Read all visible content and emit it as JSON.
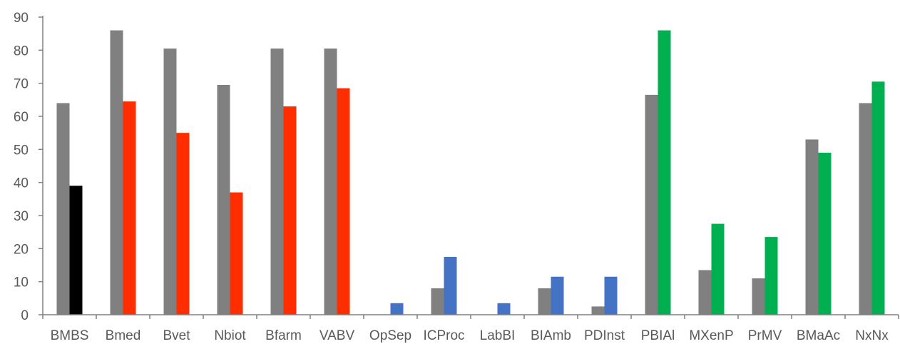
{
  "chart_data": {
    "type": "bar",
    "title": "",
    "xlabel": "",
    "ylabel": "",
    "ylim": [
      0,
      90
    ],
    "yticks": [
      0,
      10,
      20,
      30,
      40,
      50,
      60,
      70,
      80,
      90
    ],
    "grid": false,
    "legend": "none",
    "categories": [
      "BMBS",
      "Bmed",
      "Bvet",
      "Nbiot",
      "Bfarm",
      "VABV",
      "OpSep",
      "ICProc",
      "LabBI",
      "BIAmb",
      "PDInst",
      "PBIAl",
      "MXenP",
      "PrMV",
      "BMaAc",
      "NxNx"
    ],
    "series": [
      {
        "color": "#808080",
        "values": [
          64,
          86,
          80.5,
          69.5,
          80.5,
          80.5,
          0,
          8,
          0,
          8,
          2.5,
          66.5,
          13.5,
          11,
          53,
          64
        ]
      },
      {
        "colors": [
          "#000000",
          "#ff2d00",
          "#ff2d00",
          "#ff2d00",
          "#ff2d00",
          "#ff2d00",
          "#4472c4",
          "#4472c4",
          "#4472c4",
          "#4472c4",
          "#4472c4",
          "#00b050",
          "#00b050",
          "#00b050",
          "#00b050",
          "#00b050"
        ],
        "values": [
          39,
          64.5,
          55,
          37,
          63,
          68.5,
          3.5,
          17.5,
          3.5,
          11.5,
          11.5,
          86,
          27.5,
          23.5,
          49,
          70.5
        ]
      }
    ]
  }
}
